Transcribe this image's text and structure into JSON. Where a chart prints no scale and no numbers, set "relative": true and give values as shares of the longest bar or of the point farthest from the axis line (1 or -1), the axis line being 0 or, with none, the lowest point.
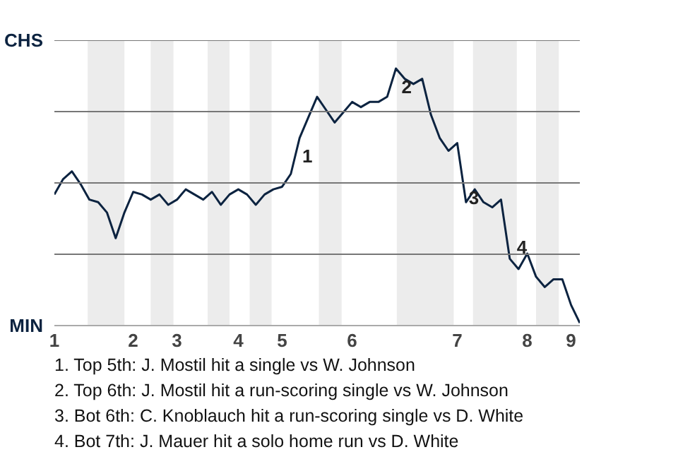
{
  "chart_data": {
    "type": "line",
    "relative": true,
    "categories": [
      "1",
      null,
      null,
      null,
      null,
      null,
      null,
      null,
      null,
      "2",
      null,
      null,
      null,
      null,
      "3",
      null,
      null,
      null,
      null,
      null,
      null,
      "4",
      null,
      null,
      null,
      null,
      "5",
      null,
      null,
      null,
      null,
      null,
      null,
      null,
      "6",
      null,
      null,
      null,
      null,
      null,
      null,
      null,
      null,
      null,
      null,
      null,
      "7",
      null,
      null,
      null,
      null,
      null,
      null,
      null,
      "8",
      null,
      null,
      null,
      null,
      "9",
      null
    ],
    "series": [
      {
        "color": "#0c2340",
        "values": [
          0.51,
          0.57,
          0.6,
          0.55,
          0.49,
          0.48,
          0.44,
          0.34,
          0.44,
          0.52,
          0.51,
          0.49,
          0.51,
          0.47,
          0.49,
          0.53,
          0.51,
          0.49,
          0.52,
          0.47,
          0.51,
          0.53,
          0.51,
          0.47,
          0.51,
          0.53,
          0.54,
          0.59,
          0.73,
          0.81,
          0.89,
          0.84,
          0.79,
          0.83,
          0.87,
          0.85,
          0.87,
          0.87,
          0.89,
          1,
          0.96,
          0.94,
          0.96,
          0.82,
          0.73,
          0.68,
          0.71,
          0.48,
          0.53,
          0.48,
          0.46,
          0.49,
          0.26,
          0.22,
          0.28,
          0.19,
          0.15,
          0.18,
          0.18,
          0.08,
          0.01
        ]
      }
    ],
    "grid": "y",
    "annotations": [
      "CHS",
      "MIN",
      "1",
      "2",
      "3",
      "4",
      "1. Top 5th: J. Mostil hit a single vs W. Johnson",
      "2. Top 6th: J. Mostil hit a run-scoring single vs W. Johnson",
      "3. Bot 6th: C. Knoblauch hit a run-scoring single vs D. White",
      "4. Bot 7th: J. Mauer hit a solo home run vs D. White"
    ]
  }
}
